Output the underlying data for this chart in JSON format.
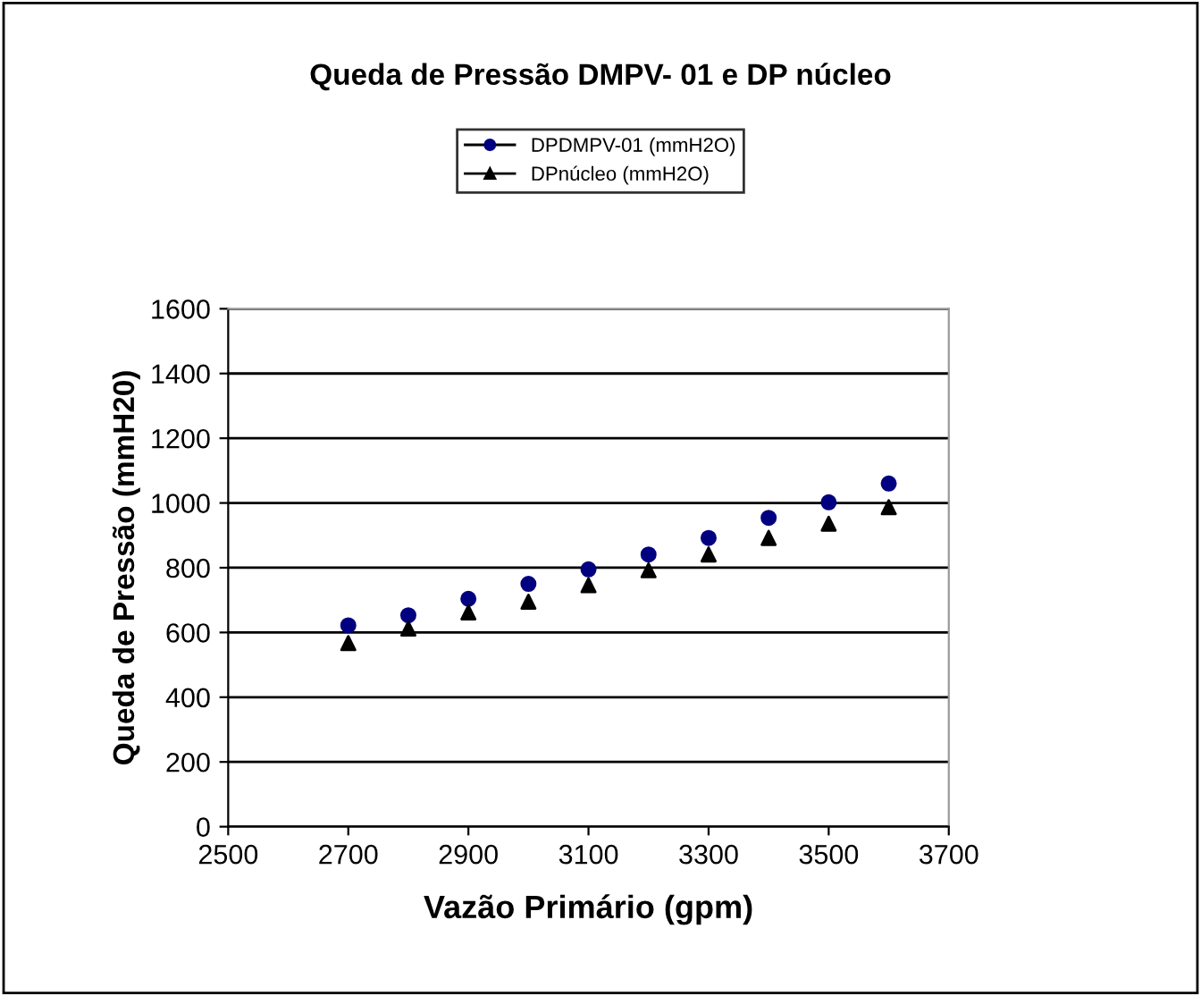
{
  "chart_data": {
    "type": "scatter",
    "title": "Queda de Pressão DMPV- 01 e DP núcleo",
    "xlabel": "Vazão Primário (gpm)",
    "ylabel": "Queda de Pressão (mmH20)",
    "x": [
      2700,
      2800,
      2900,
      3000,
      3100,
      3200,
      3300,
      3400,
      3500,
      3600
    ],
    "series": [
      {
        "name": "DPDMPV-01 (mmH2O)",
        "color": "#000080",
        "marker": "circle",
        "values": [
          622,
          653,
          704,
          750,
          795,
          841,
          892,
          954,
          1002,
          1060
        ]
      },
      {
        "name": "DPnúcleo (mmH2O)",
        "color": "#000000",
        "marker": "triangle",
        "values": [
          567,
          612,
          662,
          695,
          746,
          792,
          841,
          892,
          936,
          987
        ]
      }
    ],
    "xlim": [
      2500,
      3700
    ],
    "xticks": [
      2500,
      2700,
      2900,
      3100,
      3300,
      3500,
      3700
    ],
    "ylim": [
      0,
      1600
    ],
    "yticks": [
      0,
      200,
      400,
      600,
      800,
      1000,
      1200,
      1400,
      1600
    ],
    "grid": "y",
    "legend": "top"
  }
}
